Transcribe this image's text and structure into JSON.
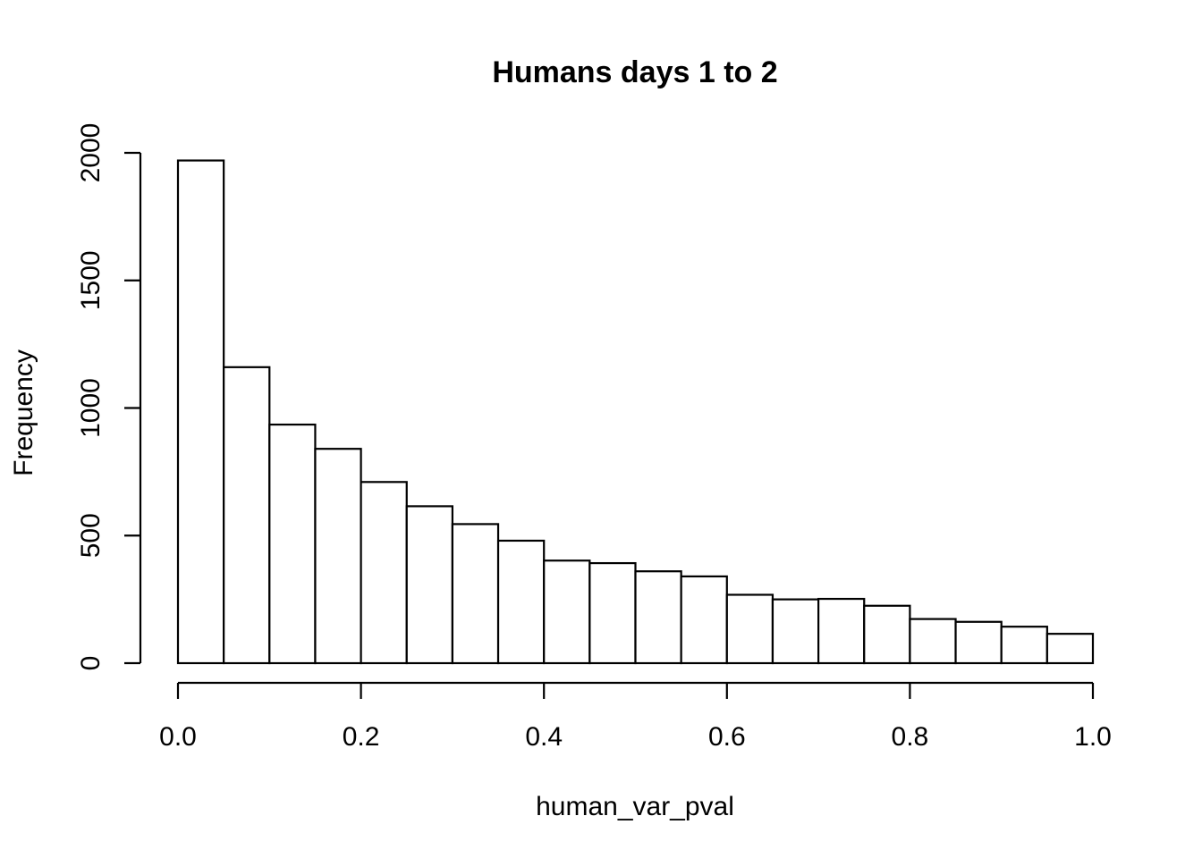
{
  "chart_data": {
    "type": "bar",
    "title": "Humans days 1 to 2",
    "xlabel": "human_var_pval",
    "ylabel": "Frequency",
    "bin_edges": [
      0.0,
      0.05,
      0.1,
      0.15,
      0.2,
      0.25,
      0.3,
      0.35,
      0.4,
      0.45,
      0.5,
      0.55,
      0.6,
      0.65,
      0.7,
      0.75,
      0.8,
      0.85,
      0.9,
      0.95,
      1.0
    ],
    "values": [
      1970,
      1160,
      935,
      840,
      710,
      615,
      545,
      480,
      402,
      392,
      360,
      340,
      268,
      250,
      252,
      225,
      173,
      162,
      143,
      115
    ],
    "xlim": [
      0,
      1
    ],
    "ylim": [
      0,
      2000
    ],
    "x_ticks": [
      0.0,
      0.2,
      0.4,
      0.6,
      0.8,
      1.0
    ],
    "x_tick_labels": [
      "0.0",
      "0.2",
      "0.4",
      "0.6",
      "0.8",
      "1.0"
    ],
    "y_ticks": [
      0,
      500,
      1000,
      1500,
      2000
    ],
    "y_tick_labels": [
      "0",
      "500",
      "1000",
      "1500",
      "2000"
    ],
    "grid": false,
    "bar_fill": "#ffffff",
    "bar_stroke": "#000000"
  }
}
